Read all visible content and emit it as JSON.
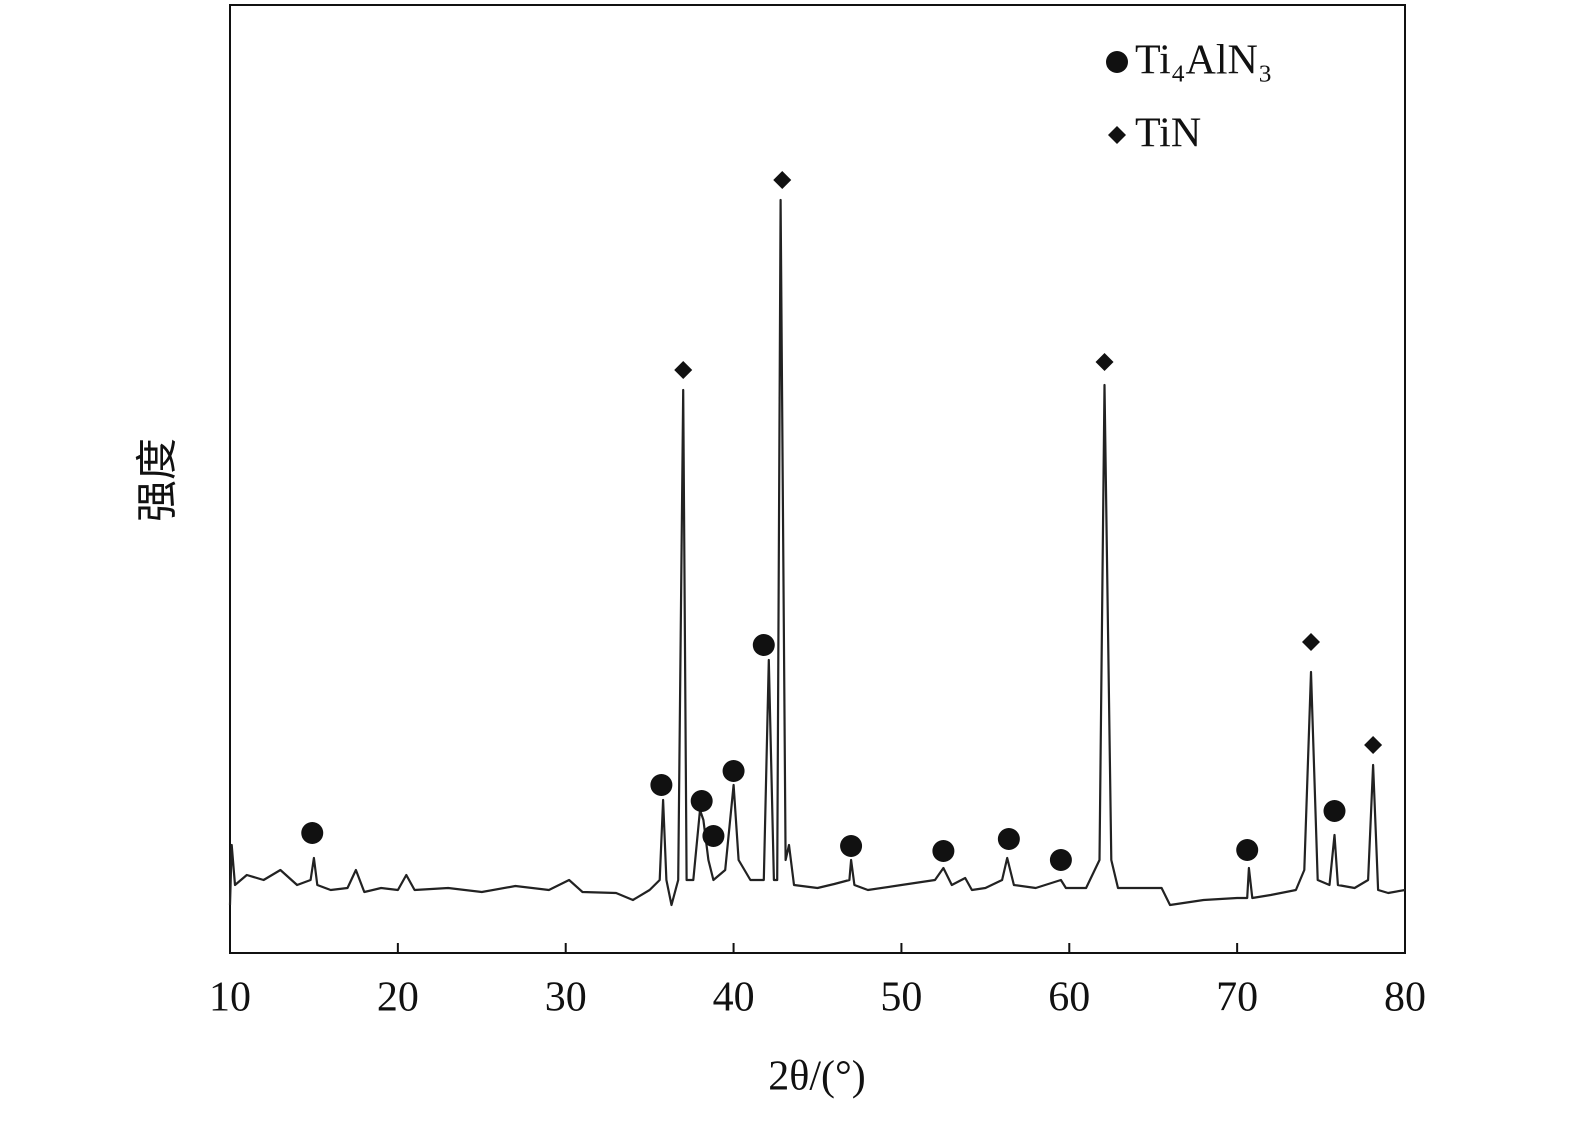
{
  "chart_data": {
    "type": "line",
    "x_label": "2θ/(°)",
    "y_label": "强度",
    "xlim": [
      10,
      80
    ],
    "xticks": [
      10,
      20,
      30,
      40,
      50,
      60,
      70,
      80
    ],
    "ylim": [
      0,
      948
    ],
    "legend": "top-right",
    "series": [
      {
        "name": null,
        "color": "#222222",
        "marker": "line",
        "x": [
          10,
          10.1,
          10.3,
          11,
          12,
          13,
          14,
          14.8,
          15,
          15.2,
          16,
          17,
          17.5,
          18,
          19,
          20,
          20.5,
          21,
          23,
          25,
          27,
          29,
          30.2,
          31,
          33,
          34,
          35,
          35.6,
          35.8,
          36,
          36.3,
          36.7,
          37,
          37.2,
          37.6,
          38,
          38.2,
          38.5,
          38.8,
          39.5,
          40,
          40.3,
          41,
          41.8,
          42.1,
          42.4,
          42.6,
          42.8,
          43.1,
          43.3,
          43.6,
          45,
          46,
          46.9,
          47,
          47.2,
          48,
          50,
          52,
          52.5,
          53,
          53.8,
          54.2,
          55,
          56,
          56.3,
          56.7,
          58,
          59.5,
          59.8,
          61,
          61.8,
          62.1,
          62.5,
          62.9,
          64,
          65.5,
          66,
          68,
          70,
          70.6,
          70.7,
          70.9,
          72,
          73.5,
          74,
          74.4,
          74.8,
          75.5,
          75.8,
          76,
          77,
          77.8,
          78.1,
          78.4,
          79,
          80
        ],
        "values": [
          48,
          108,
          68,
          78,
          73,
          83,
          68,
          73,
          95,
          68,
          63,
          65,
          83,
          61,
          65,
          63,
          78,
          63,
          65,
          61,
          67,
          63,
          73,
          61,
          60,
          53,
          63,
          73,
          153,
          73,
          48,
          73,
          563,
          73,
          73,
          143,
          133,
          93,
          73,
          83,
          168,
          93,
          73,
          73,
          293,
          73,
          73,
          753,
          93,
          108,
          68,
          65,
          69,
          73,
          93,
          68,
          63,
          68,
          73,
          85,
          68,
          75,
          63,
          65,
          73,
          95,
          68,
          65,
          73,
          65,
          65,
          93,
          568,
          93,
          65,
          65,
          65,
          48,
          53,
          55,
          55,
          85,
          55,
          58,
          63,
          83,
          281,
          73,
          68,
          118,
          68,
          65,
          73,
          188,
          63,
          60,
          63
        ]
      },
      {
        "name": "Ti₄AlN₃",
        "color": "#111111",
        "marker": "circle",
        "x": [
          14.9,
          35.7,
          38.1,
          38.8,
          40.0,
          41.8,
          47.0,
          52.5,
          56.4,
          59.5,
          70.6,
          75.8
        ],
        "values": [
          120,
          168,
          152,
          117,
          182,
          308,
          107,
          102,
          114,
          93,
          103,
          142
        ]
      },
      {
        "name": "TiN",
        "color": "#111111",
        "marker": "diamond",
        "x": [
          37.0,
          42.9,
          62.1,
          74.4,
          78.1
        ],
        "values": [
          583,
          773,
          591,
          311,
          208
        ]
      }
    ]
  }
}
